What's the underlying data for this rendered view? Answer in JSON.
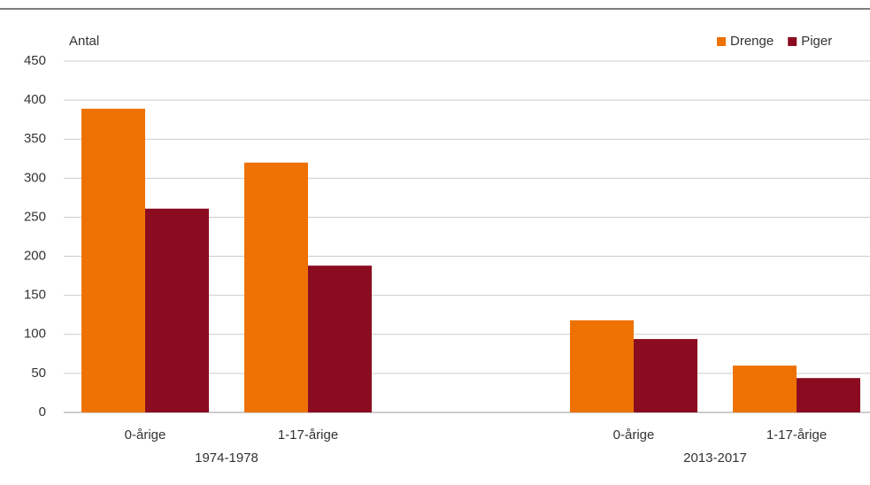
{
  "chart_data": {
    "type": "bar",
    "y_label": "Antal",
    "categories": [
      "0-årige",
      "1-17-årige",
      null,
      "0-årige",
      "1-17-årige"
    ],
    "group_labels": [
      "1974-1978",
      "2013-2017"
    ],
    "series": [
      {
        "name": "Drenge",
        "color": "#ee7203",
        "values": [
          389,
          320,
          null,
          118,
          60
        ]
      },
      {
        "name": "Piger",
        "color": "#8b0c20",
        "values": [
          261,
          188,
          null,
          94,
          44
        ]
      }
    ],
    "ylim": [
      0,
      450
    ],
    "yticks": [
      0,
      50,
      100,
      150,
      200,
      250,
      300,
      350,
      400,
      450
    ],
    "grid": true,
    "legend": "top-right"
  }
}
